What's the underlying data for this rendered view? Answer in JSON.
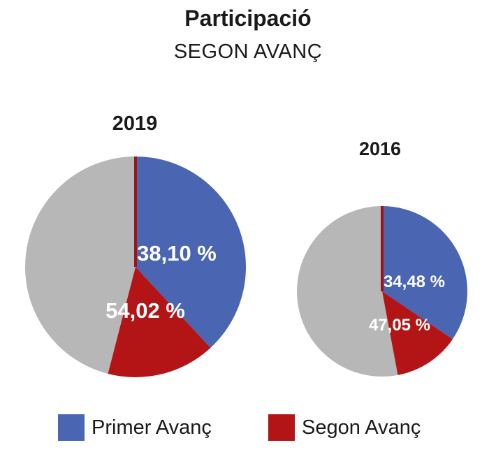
{
  "title": "Participació",
  "subtitle": "SEGON AVANÇ",
  "colors": {
    "primer": "#4a66b3",
    "segon": "#b31416",
    "rest": "#b7b7b7",
    "separator": "#9f1414"
  },
  "legend": [
    {
      "label": "Primer Avanç",
      "color": "#4a66b3"
    },
    {
      "label": "Segon Avanç",
      "color": "#b31416"
    }
  ],
  "chart_data": [
    {
      "type": "pie",
      "year": "2019",
      "series": [
        {
          "name": "Primer Avanç",
          "value": 38.1,
          "label": "38,10 %"
        },
        {
          "name": "Segon Avanç",
          "value": 54.02,
          "label": "54,02 %"
        }
      ]
    },
    {
      "type": "pie",
      "year": "2016",
      "series": [
        {
          "name": "Primer Avanç",
          "value": 34.48,
          "label": "34,48 %"
        },
        {
          "name": "Segon Avanç",
          "value": 47.05,
          "label": "47,05 %"
        }
      ]
    }
  ]
}
